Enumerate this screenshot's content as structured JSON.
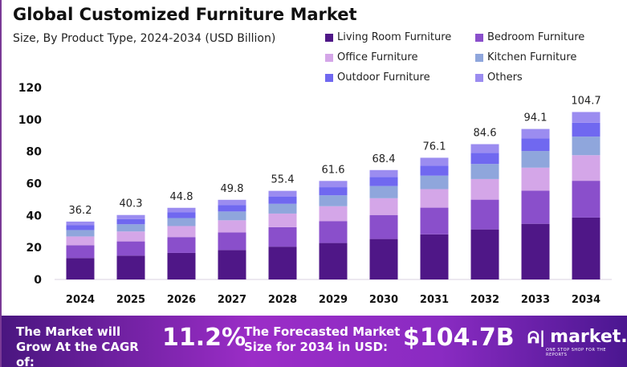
{
  "chart_data": {
    "type": "bar",
    "stacked": true,
    "title": "Global Customized Furniture Market",
    "subtitle": "Size, By Product Type, 2024-2034 (USD Billion)",
    "categories": [
      "2024",
      "2025",
      "2026",
      "2027",
      "2028",
      "2029",
      "2030",
      "2031",
      "2032",
      "2033",
      "2034"
    ],
    "totals": [
      "36.2",
      "40.3",
      "44.8",
      "49.8",
      "55.4",
      "61.6",
      "68.4",
      "76.1",
      "84.6",
      "94.1",
      "104.7"
    ],
    "series": [
      {
        "name": "Living Room Furniture",
        "color": "#4f1787",
        "values": [
          13.4,
          14.9,
          16.6,
          18.4,
          20.5,
          22.8,
          25.3,
          28.2,
          31.3,
          34.8,
          38.7
        ]
      },
      {
        "name": "Bedroom Furniture",
        "color": "#8a4fcb",
        "values": [
          8.0,
          8.9,
          9.9,
          11.0,
          12.2,
          13.6,
          15.0,
          16.7,
          18.6,
          20.7,
          23.0
        ]
      },
      {
        "name": "Office Furniture",
        "color": "#d4a6e8",
        "values": [
          5.5,
          6.2,
          6.9,
          7.6,
          8.5,
          9.4,
          10.5,
          11.6,
          12.9,
          14.4,
          16.0
        ]
      },
      {
        "name": "Kitchen Furniture",
        "color": "#8fa6dc",
        "values": [
          4.0,
          4.5,
          5.0,
          5.5,
          6.1,
          6.8,
          7.6,
          8.4,
          9.4,
          10.4,
          11.6
        ]
      },
      {
        "name": "Outdoor Furniture",
        "color": "#7068f0",
        "values": [
          3.0,
          3.3,
          3.7,
          4.1,
          4.6,
          5.1,
          5.7,
          6.3,
          7.0,
          7.8,
          8.7
        ]
      },
      {
        "name": "Others",
        "color": "#9b8cf0",
        "values": [
          2.3,
          2.5,
          2.7,
          3.2,
          3.5,
          3.9,
          4.3,
          4.9,
          5.4,
          6.0,
          6.7
        ]
      }
    ],
    "yticks": [
      "0",
      "20",
      "40",
      "60",
      "80",
      "100",
      "120"
    ],
    "ylim": [
      0,
      120
    ],
    "grid": false,
    "legend": "top-right"
  },
  "banner": {
    "cagr_label": "The Market will Grow At the CAGR of:",
    "cagr_value": "11.2%",
    "forecast_label": "The Forecasted Market Size for 2034 in USD:",
    "forecast_value": "$104.7B",
    "brand": "market.us",
    "tagline": "ONE STOP SHOP FOR THE REPORTS"
  }
}
